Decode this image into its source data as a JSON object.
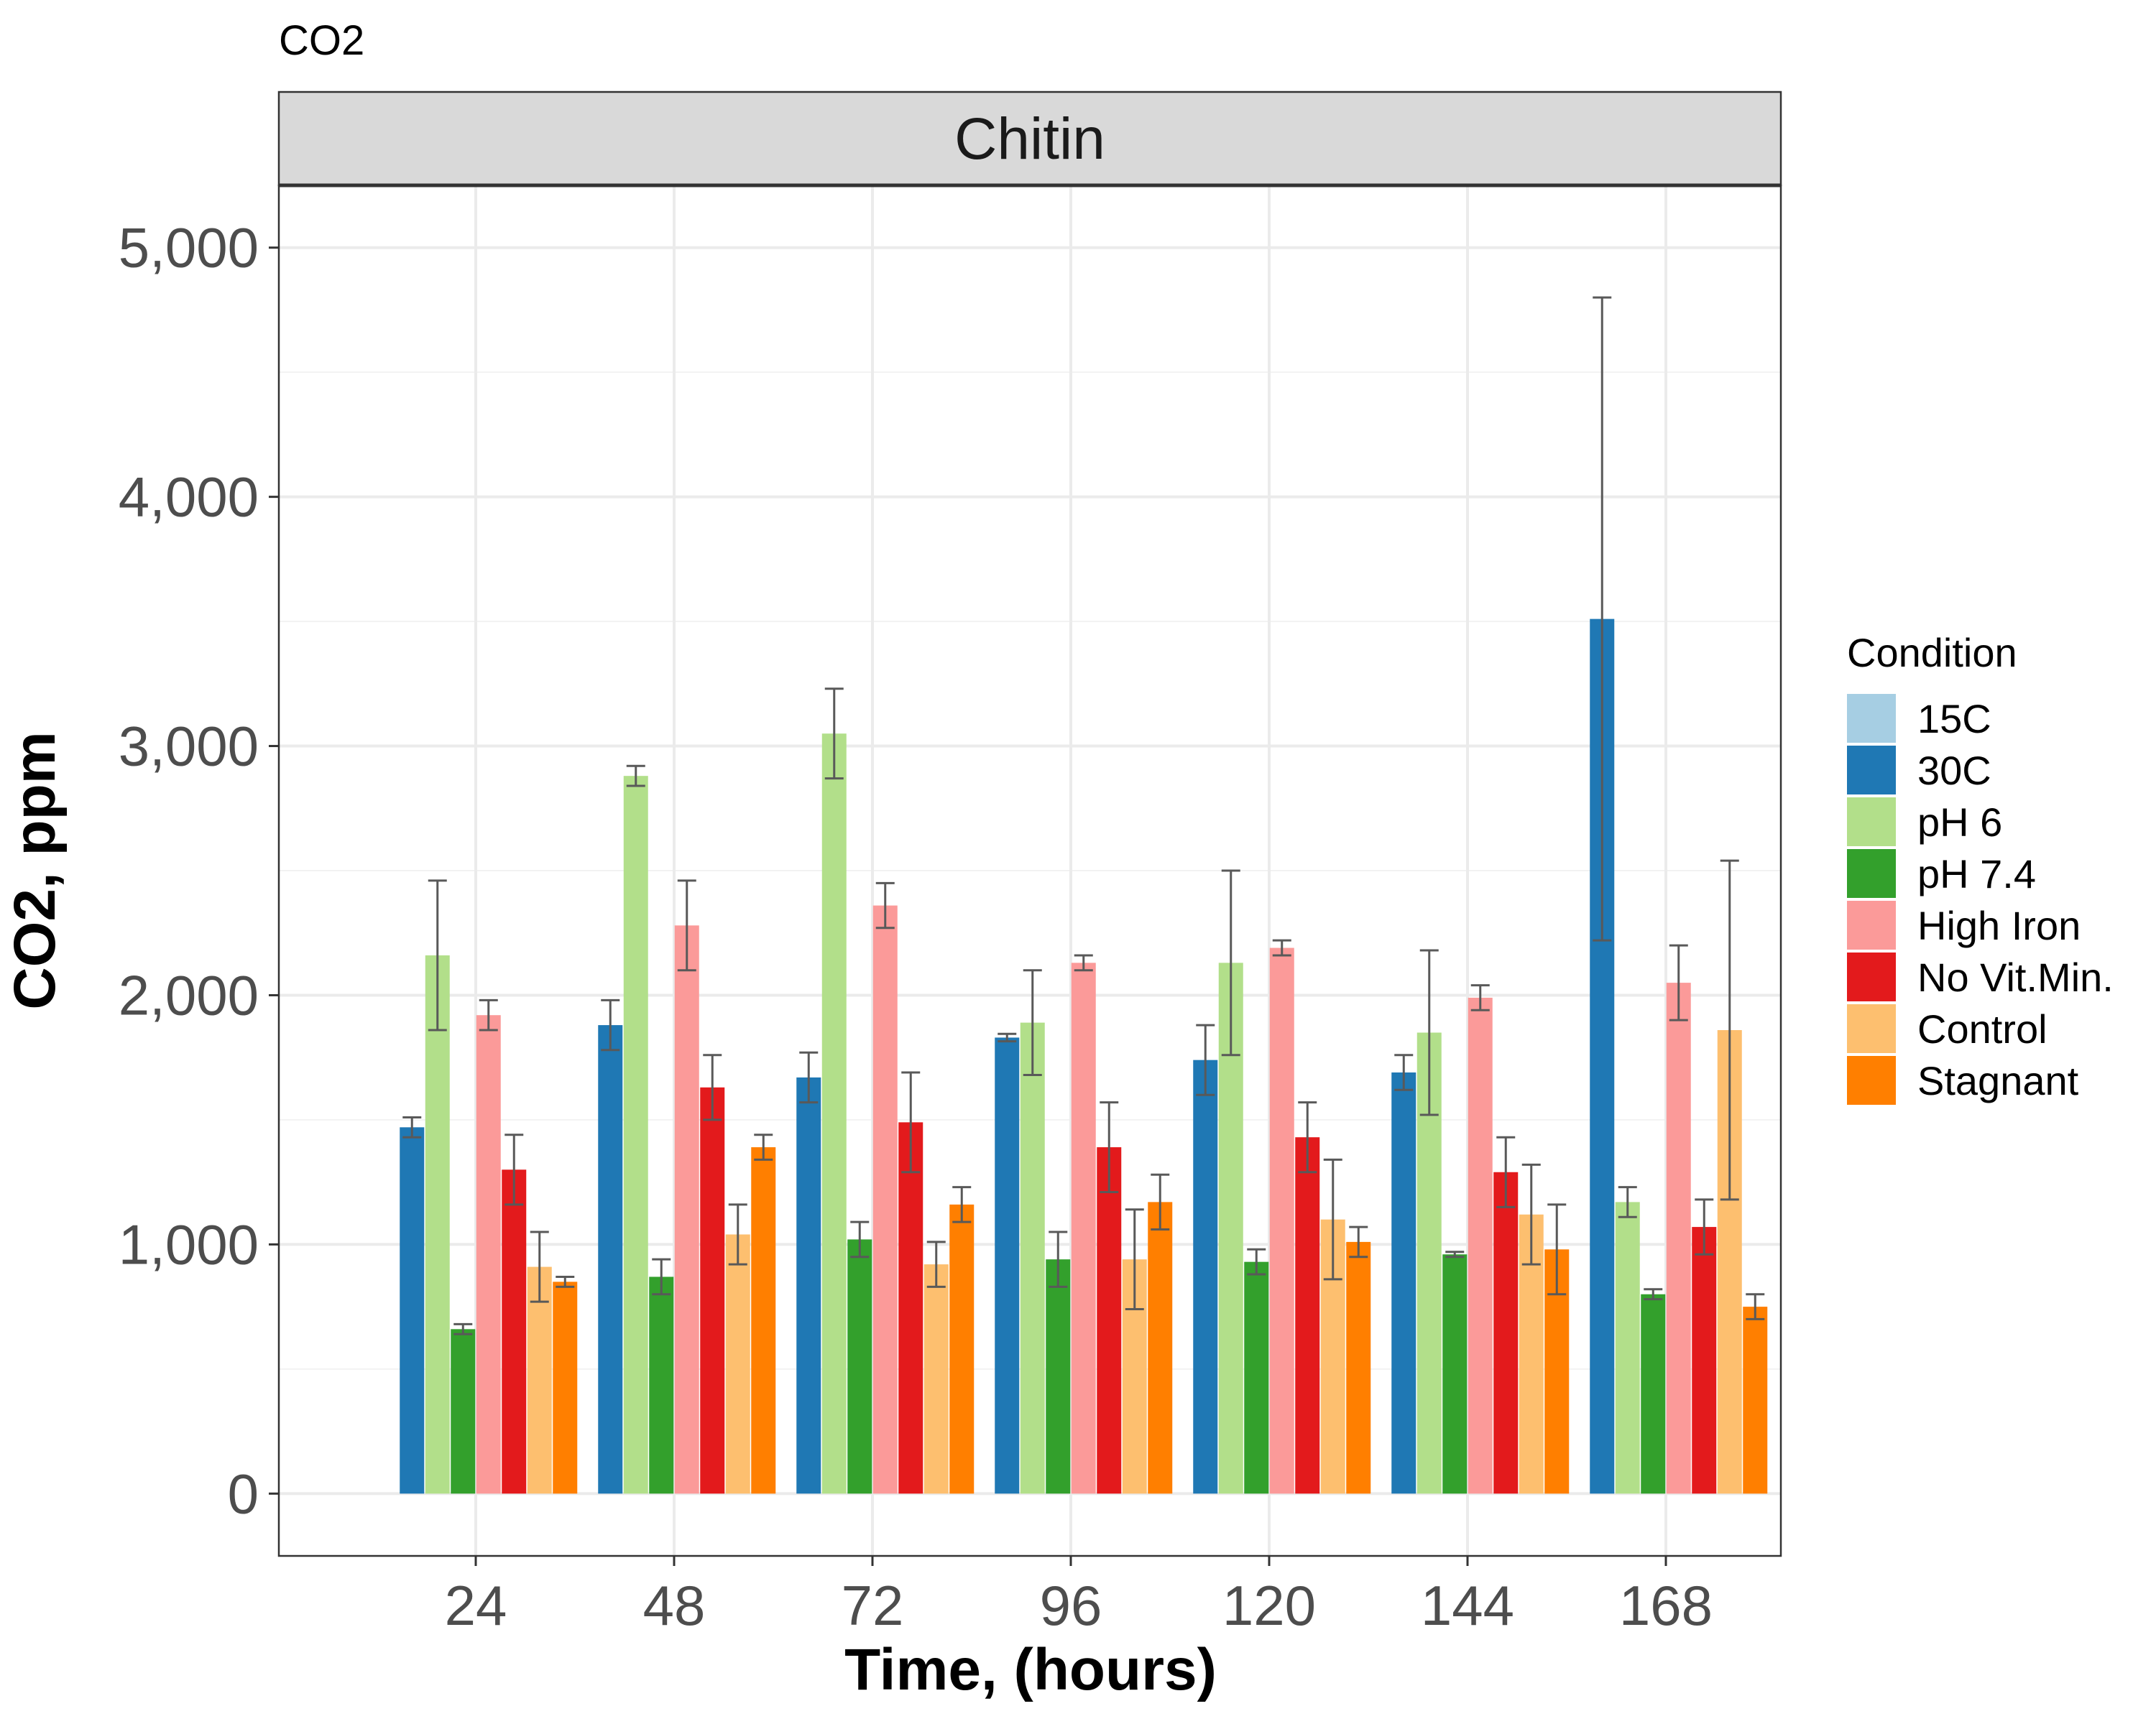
{
  "chart_data": {
    "type": "bar",
    "title": "CO2",
    "facet": "Chitin",
    "xlabel": "Time, (hours)",
    "ylabel": "CO2, ppm",
    "categories": [
      "24",
      "48",
      "72",
      "96",
      "120",
      "144",
      "168"
    ],
    "ylim": [
      -250,
      5250
    ],
    "yticks": [
      0,
      1000,
      2000,
      3000,
      4000,
      5000
    ],
    "ytick_labels": [
      "0",
      "1,000",
      "2,000",
      "3,000",
      "4,000",
      "5,000"
    ],
    "grid": true,
    "legend_title": "Condition",
    "legend_position": "right",
    "series": [
      {
        "name": "15C",
        "color": "#a6cee3",
        "values": [
          null,
          null,
          null,
          null,
          null,
          null,
          null
        ],
        "errors": [
          null,
          null,
          null,
          null,
          null,
          null,
          null
        ]
      },
      {
        "name": "30C",
        "color": "#1f78b4",
        "values": [
          1470,
          1880,
          1670,
          1830,
          1740,
          1690,
          3510
        ],
        "errors": [
          40,
          100,
          100,
          15,
          140,
          70,
          1290
        ]
      },
      {
        "name": "pH 6",
        "color": "#b2df8a",
        "values": [
          2160,
          2880,
          3050,
          1890,
          2130,
          1850,
          1170
        ],
        "errors": [
          300,
          40,
          180,
          210,
          370,
          330,
          60
        ]
      },
      {
        "name": "pH 7.4",
        "color": "#33a02c",
        "values": [
          660,
          870,
          1020,
          940,
          930,
          960,
          800
        ],
        "errors": [
          20,
          70,
          70,
          110,
          50,
          10,
          20
        ]
      },
      {
        "name": "High Iron",
        "color": "#fb9a99",
        "values": [
          1920,
          2280,
          2360,
          2130,
          2190,
          1990,
          2050
        ],
        "errors": [
          60,
          180,
          90,
          30,
          30,
          50,
          150
        ]
      },
      {
        "name": "No Vit.Min.",
        "color": "#e31a1c",
        "values": [
          1300,
          1630,
          1490,
          1390,
          1430,
          1290,
          1070
        ],
        "errors": [
          140,
          130,
          200,
          180,
          140,
          140,
          110
        ]
      },
      {
        "name": "Control",
        "color": "#fdbf6f",
        "values": [
          910,
          1040,
          920,
          940,
          1100,
          1120,
          1860
        ],
        "errors": [
          140,
          120,
          90,
          200,
          240,
          200,
          680
        ]
      },
      {
        "name": "Stagnant",
        "color": "#ff7f00",
        "values": [
          850,
          1390,
          1160,
          1170,
          1010,
          980,
          750
        ],
        "errors": [
          20,
          50,
          70,
          110,
          60,
          180,
          50
        ]
      }
    ]
  }
}
